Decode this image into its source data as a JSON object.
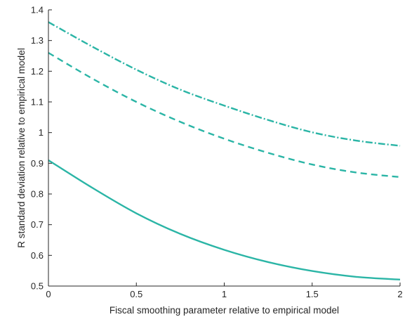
{
  "chart_data": {
    "type": "line",
    "title": "",
    "xlabel": "Fiscal smoothing parameter relative to empirical model",
    "ylabel": "R standard deviation relative to empirical model",
    "xlim": [
      0,
      2
    ],
    "ylim": [
      0.5,
      1.4
    ],
    "xticks": [
      0,
      0.5,
      1,
      1.5,
      2
    ],
    "xtick_labels": [
      "0",
      "0.5",
      "1",
      "1.5",
      "2"
    ],
    "yticks": [
      0.5,
      0.6,
      0.7,
      0.8,
      0.9,
      1.0,
      1.1,
      1.2,
      1.3,
      1.4
    ],
    "ytick_labels": [
      "0.5",
      "0.6",
      "0.7",
      "0.8",
      "0.9",
      "1",
      "1.1",
      "1.2",
      "1.3",
      "1.4"
    ],
    "grid": false,
    "legend": "none",
    "series_color": "#2bb5a6",
    "x": [
      0,
      0.25,
      0.5,
      0.75,
      1.0,
      1.25,
      1.5,
      1.75,
      2.0
    ],
    "series": [
      {
        "style": "solid",
        "values": [
          0.91,
          0.82,
          0.737,
          0.67,
          0.618,
          0.578,
          0.549,
          0.53,
          0.521
        ]
      },
      {
        "style": "dashed",
        "values": [
          1.26,
          1.176,
          1.1,
          1.035,
          0.98,
          0.934,
          0.896,
          0.87,
          0.855
        ]
      },
      {
        "style": "dashdot",
        "values": [
          1.36,
          1.28,
          1.205,
          1.14,
          1.088,
          1.041,
          1.001,
          0.974,
          0.957
        ]
      }
    ]
  }
}
